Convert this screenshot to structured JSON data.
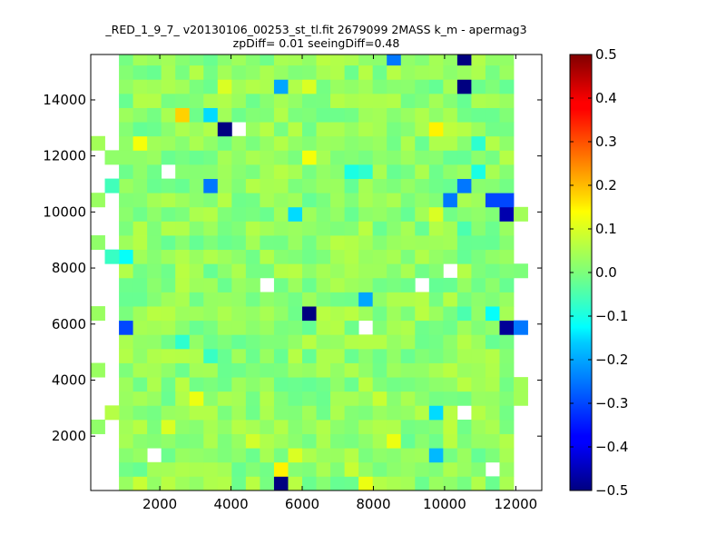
{
  "title_lines": [
    "_RED_1_9_7_ v20130106_00253_st_tl.fit 2679099 2MASS k_m - apermag3",
    "zpDiff= 0.01 seeingDiff=0.48"
  ],
  "chart_data": {
    "type": "heatmap",
    "title": "_RED_1_9_7_ v20130106_00253_st_tl.fit 2679099 2MASS k_m - apermag3 zpDiff= 0.01 seeingDiff=0.48",
    "xlabel": "",
    "ylabel": "",
    "xlim": [
      60,
      12730
    ],
    "ylim": [
      60,
      15620
    ],
    "xticks": [
      2000,
      4000,
      6000,
      8000,
      10000,
      12000
    ],
    "xtick_labels": [
      "2000",
      "4000",
      "6000",
      "8000",
      "10000",
      "12000"
    ],
    "yticks": [
      2000,
      4000,
      6000,
      8000,
      10000,
      12000,
      14000
    ],
    "ytick_labels": [
      "2000",
      "4000",
      "6000",
      "8000",
      "10000",
      "12000",
      "14000"
    ],
    "colormap": "jet",
    "colorbar": {
      "range": [
        -0.5,
        0.5
      ],
      "ticks": [
        0.5,
        0.4,
        0.3,
        0.2,
        0.1,
        0.0,
        -0.1,
        -0.2,
        -0.3,
        -0.4,
        -0.5
      ],
      "tick_labels": [
        "0.5",
        "0.4",
        "0.3",
        "0.2",
        "0.1",
        "0.0",
        "−0.1",
        "−0.2",
        "−0.3",
        "−0.4",
        "−0.5"
      ]
    },
    "grid": {
      "x_start": 60,
      "x_step": 396,
      "n_cols": 32,
      "y_start": 60,
      "y_step": 506,
      "n_rows": 31,
      "col_range": [
        2,
        29
      ],
      "base_value": 0.02,
      "missing_cells": [
        [
          10,
          25
        ],
        [
          5,
          22
        ],
        [
          12,
          14
        ],
        [
          23,
          14
        ],
        [
          19,
          11
        ],
        [
          25,
          15
        ],
        [
          28,
          1
        ],
        [
          26,
          5
        ],
        [
          4,
          2
        ],
        [
          0,
          0
        ],
        [
          0,
          1
        ]
      ],
      "edge_cells": [
        {
          "col": 0,
          "row": 4,
          "value": 0.02
        },
        {
          "col": 1,
          "row": 5,
          "value": 0.06
        },
        {
          "col": 0,
          "row": 8,
          "value": 0.03
        },
        {
          "col": 0,
          "row": 17,
          "value": 0.02
        },
        {
          "col": 1,
          "row": 16,
          "value": -0.07
        },
        {
          "col": 0,
          "row": 20,
          "value": 0.03
        },
        {
          "col": 1,
          "row": 21,
          "value": -0.06
        },
        {
          "col": 0,
          "row": 24,
          "value": 0.04
        },
        {
          "col": 1,
          "row": 23,
          "value": 0.02
        },
        {
          "col": 0,
          "row": 12,
          "value": 0.03
        },
        {
          "col": 30,
          "row": 6,
          "value": 0.04
        },
        {
          "col": 30,
          "row": 7,
          "value": 0.04
        },
        {
          "col": 30,
          "row": 11,
          "value": -0.25
        },
        {
          "col": 30,
          "row": 15,
          "value": 0.0
        },
        {
          "col": 30,
          "row": 19,
          "value": 0.04
        },
        {
          "col": 29,
          "row": 11,
          "value": -0.48
        },
        {
          "col": 29,
          "row": 19,
          "value": -0.46
        },
        {
          "col": 29,
          "row": 20,
          "value": -0.3
        },
        {
          "col": 29,
          "row": 16,
          "value": 0.03
        },
        {
          "col": 29,
          "row": 23,
          "value": 0.06
        }
      ],
      "special_cells": [
        {
          "col": 21,
          "row": 30,
          "value": -0.25
        },
        {
          "col": 26,
          "row": 30,
          "value": -0.5
        },
        {
          "col": 26,
          "row": 28,
          "value": -0.5
        },
        {
          "col": 13,
          "row": 28,
          "value": -0.2
        },
        {
          "col": 15,
          "row": 28,
          "value": 0.1
        },
        {
          "col": 12,
          "row": 28,
          "value": 0.05
        },
        {
          "col": 9,
          "row": 28,
          "value": 0.1
        },
        {
          "col": 6,
          "row": 26,
          "value": 0.18
        },
        {
          "col": 8,
          "row": 26,
          "value": -0.15
        },
        {
          "col": 9,
          "row": 25,
          "value": -0.5
        },
        {
          "col": 24,
          "row": 25,
          "value": 0.15
        },
        {
          "col": 25,
          "row": 25,
          "value": 0.07
        },
        {
          "col": 3,
          "row": 24,
          "value": 0.13
        },
        {
          "col": 27,
          "row": 24,
          "value": -0.08
        },
        {
          "col": 15,
          "row": 23,
          "value": 0.13
        },
        {
          "col": 18,
          "row": 22,
          "value": -0.1
        },
        {
          "col": 19,
          "row": 22,
          "value": -0.08
        },
        {
          "col": 23,
          "row": 22,
          "value": 0.05
        },
        {
          "col": 27,
          "row": 22,
          "value": -0.1
        },
        {
          "col": 8,
          "row": 21,
          "value": -0.25
        },
        {
          "col": 26,
          "row": 21,
          "value": -0.25
        },
        {
          "col": 25,
          "row": 20,
          "value": -0.25
        },
        {
          "col": 28,
          "row": 20,
          "value": -0.3
        },
        {
          "col": 14,
          "row": 19,
          "value": -0.15
        },
        {
          "col": 24,
          "row": 19,
          "value": 0.1
        },
        {
          "col": 26,
          "row": 18,
          "value": -0.05
        },
        {
          "col": 2,
          "row": 16,
          "value": -0.12
        },
        {
          "col": 19,
          "row": 13,
          "value": -0.2
        },
        {
          "col": 15,
          "row": 12,
          "value": -0.5
        },
        {
          "col": 26,
          "row": 12,
          "value": -0.05
        },
        {
          "col": 28,
          "row": 12,
          "value": -0.12
        },
        {
          "col": 2,
          "row": 11,
          "value": -0.3
        },
        {
          "col": 6,
          "row": 10,
          "value": -0.08
        },
        {
          "col": 8,
          "row": 9,
          "value": -0.07
        },
        {
          "col": 7,
          "row": 6,
          "value": 0.12
        },
        {
          "col": 20,
          "row": 6,
          "value": 0.08
        },
        {
          "col": 24,
          "row": 5,
          "value": -0.15
        },
        {
          "col": 25,
          "row": 4,
          "value": 0.07
        },
        {
          "col": 21,
          "row": 3,
          "value": 0.12
        },
        {
          "col": 24,
          "row": 2,
          "value": -0.18
        },
        {
          "col": 14,
          "row": 2,
          "value": 0.1
        },
        {
          "col": 18,
          "row": 1,
          "value": 0.08
        },
        {
          "col": 13,
          "row": 0,
          "value": -0.5
        },
        {
          "col": 13,
          "row": 1,
          "value": 0.15
        },
        {
          "col": 3,
          "row": 0,
          "value": 0.08
        },
        {
          "col": 19,
          "row": 0,
          "value": 0.12
        },
        {
          "col": 11,
          "row": 3,
          "value": 0.09
        },
        {
          "col": 5,
          "row": 4,
          "value": 0.1
        },
        {
          "col": 28,
          "row": 7,
          "value": 0.05
        },
        {
          "col": 27,
          "row": 5,
          "value": 0.06
        }
      ]
    }
  }
}
